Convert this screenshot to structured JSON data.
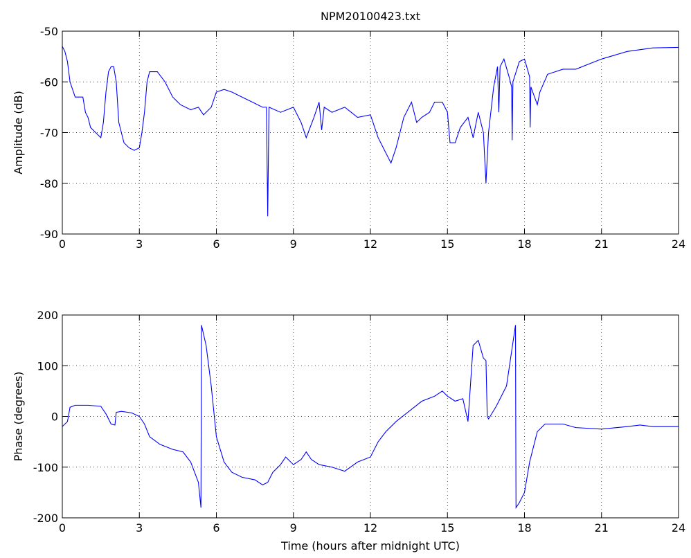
{
  "chart_data": [
    {
      "type": "line",
      "title": "NPM20100423.txt",
      "ylabel": "Amplitude (dB)",
      "color": "#0000ff",
      "grid": true,
      "xlim": [
        0,
        24
      ],
      "xticks": [
        0,
        3,
        6,
        9,
        12,
        15,
        18,
        21,
        24
      ],
      "ylim": [
        -90,
        -50
      ],
      "yticks": [
        -90,
        -80,
        -70,
        -60,
        -50
      ],
      "x": [
        0,
        0.1,
        0.2,
        0.3,
        0.5,
        0.8,
        0.9,
        1.0,
        1.1,
        1.3,
        1.5,
        1.6,
        1.7,
        1.8,
        1.9,
        2.0,
        2.1,
        2.2,
        2.4,
        2.6,
        2.8,
        3.0,
        3.1,
        3.2,
        3.3,
        3.4,
        3.7,
        4.0,
        4.3,
        4.6,
        5.0,
        5.3,
        5.5,
        5.8,
        6.0,
        6.3,
        6.6,
        7.0,
        7.4,
        7.8,
        7.95,
        8.0,
        8.05,
        8.5,
        9.0,
        9.3,
        9.5,
        9.8,
        10.0,
        10.1,
        10.2,
        10.5,
        11.0,
        11.5,
        12.0,
        12.3,
        12.5,
        12.8,
        13.0,
        13.3,
        13.6,
        13.8,
        14.0,
        14.3,
        14.5,
        14.8,
        15.0,
        15.1,
        15.3,
        15.5,
        15.8,
        16.0,
        16.2,
        16.4,
        16.5,
        16.6,
        16.8,
        16.95,
        17.0,
        17.05,
        17.2,
        17.4,
        17.5,
        17.52,
        17.55,
        17.8,
        18.0,
        18.2,
        18.22,
        18.25,
        18.5,
        18.6,
        18.9,
        19.5,
        20.0,
        21.0,
        22.0,
        23.0,
        24
      ],
      "values": [
        -53,
        -54,
        -56,
        -60,
        -63,
        -63,
        -66,
        -67,
        -69,
        -70,
        -71,
        -68,
        -62,
        -58,
        -57,
        -57,
        -60,
        -68,
        -72,
        -73,
        -73.5,
        -73,
        -70,
        -66,
        -60,
        -58,
        -58,
        -60,
        -63,
        -64.5,
        -65.5,
        -65,
        -66.5,
        -65,
        -62,
        -61.5,
        -62,
        -63,
        -64,
        -65,
        -65,
        -86.5,
        -65,
        -66,
        -65,
        -68,
        -71,
        -67,
        -64,
        -69.5,
        -65,
        -66,
        -65,
        -67,
        -66.5,
        -71,
        -73,
        -76,
        -73,
        -67,
        -64,
        -68,
        -67,
        -66,
        -64,
        -64,
        -66,
        -72,
        -72,
        -69,
        -67,
        -71,
        -66,
        -70,
        -80,
        -70,
        -61,
        -57,
        -66,
        -57,
        -55.5,
        -59,
        -61,
        -71.5,
        -60,
        -56,
        -55.5,
        -59,
        -69,
        -61,
        -64.5,
        -62,
        -58.5,
        -57.5,
        -57.5,
        -55.5,
        -54,
        -53.3,
        -53.2
      ]
    },
    {
      "type": "line",
      "ylabel": "Phase (degrees)",
      "xlabel": "Time (hours after midnight UTC)",
      "color": "#0000ff",
      "grid": true,
      "xlim": [
        0,
        24
      ],
      "xticks": [
        0,
        3,
        6,
        9,
        12,
        15,
        18,
        21,
        24
      ],
      "ylim": [
        -200,
        200
      ],
      "yticks": [
        -200,
        -100,
        0,
        100,
        200
      ],
      "x": [
        0,
        0.1,
        0.2,
        0.3,
        0.5,
        1.0,
        1.5,
        1.7,
        1.9,
        2.05,
        2.1,
        2.3,
        2.7,
        3.0,
        3.2,
        3.4,
        3.8,
        4.3,
        4.7,
        5.0,
        5.3,
        5.4,
        5.42,
        5.6,
        5.8,
        6.0,
        6.3,
        6.6,
        7.0,
        7.5,
        7.8,
        8.0,
        8.2,
        8.5,
        8.7,
        9.0,
        9.3,
        9.5,
        9.7,
        10.0,
        10.5,
        11.0,
        11.5,
        12.0,
        12.3,
        12.6,
        13.0,
        13.5,
        14.0,
        14.5,
        14.8,
        15.0,
        15.3,
        15.6,
        15.8,
        16.0,
        16.2,
        16.4,
        16.5,
        16.55,
        16.6,
        16.9,
        17.3,
        17.65,
        17.67,
        17.8,
        18.0,
        18.2,
        18.5,
        18.8,
        19.5,
        20.0,
        21.0,
        22.0,
        22.5,
        23.0,
        24
      ],
      "values": [
        -20,
        -15,
        -10,
        18,
        22,
        22,
        20,
        5,
        -15,
        -17,
        8,
        10,
        7,
        0,
        -15,
        -40,
        -55,
        -65,
        -70,
        -90,
        -130,
        -180,
        180,
        140,
        60,
        -40,
        -90,
        -110,
        -120,
        -125,
        -135,
        -130,
        -110,
        -95,
        -80,
        -95,
        -85,
        -70,
        -85,
        -95,
        -100,
        -108,
        -90,
        -80,
        -50,
        -30,
        -10,
        10,
        30,
        40,
        50,
        40,
        30,
        35,
        -10,
        140,
        150,
        115,
        110,
        0,
        -5,
        20,
        60,
        180,
        -180,
        -170,
        -150,
        -90,
        -30,
        -15,
        -15,
        -22,
        -25,
        -20,
        -17,
        -20,
        -20
      ]
    }
  ]
}
